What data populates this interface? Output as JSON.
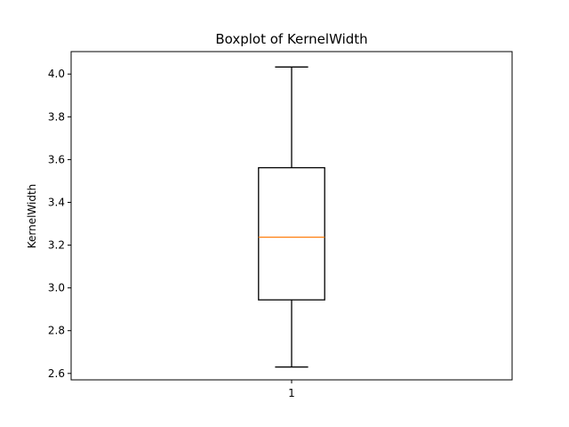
{
  "chart_data": {
    "type": "boxplot",
    "title": "Boxplot of KernelWidth",
    "xlabel": "",
    "ylabel": "KernelWidth",
    "categories": [
      "1"
    ],
    "ylim": [
      2.57,
      4.105
    ],
    "yticks": [
      2.6,
      2.8,
      3.0,
      3.2,
      3.4,
      3.6,
      3.8,
      4.0
    ],
    "ytick_labels": [
      "2.6",
      "2.8",
      "3.0",
      "3.2",
      "3.4",
      "3.6",
      "3.8",
      "4.0"
    ],
    "boxes": [
      {
        "label": "1",
        "whisker_low": 2.63,
        "q1": 2.944,
        "median": 3.237,
        "q3": 3.562,
        "whisker_high": 4.033
      }
    ],
    "grid": false,
    "colors": {
      "box": "#000000",
      "median": "#ff7f0e",
      "background": "#ffffff"
    }
  }
}
